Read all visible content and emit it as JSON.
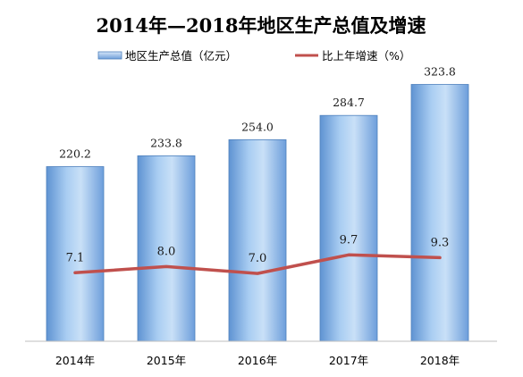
{
  "chart_data": {
    "type": "bar",
    "title": "2014年—2018年地区生产总值及增速",
    "categories": [
      "2014年",
      "2015年",
      "2016年",
      "2017年",
      "2018年"
    ],
    "series": [
      {
        "name": "地区生产总值（亿元）",
        "type": "bar",
        "values": [
          220.2,
          233.8,
          254.0,
          284.7,
          323.8
        ],
        "labels": [
          "220.2",
          "233.8",
          "254.0",
          "284.7",
          "323.8"
        ]
      },
      {
        "name": "比上年增速（%）",
        "type": "line",
        "values": [
          7.1,
          8.0,
          7.0,
          9.7,
          9.3
        ],
        "labels": [
          "7.1",
          "8.0",
          "7.0",
          "9.7",
          "9.3"
        ]
      }
    ],
    "legend_position": "top",
    "grid": false,
    "colors": {
      "bar_light": "#cfe3f8",
      "bar_mid": "#8fbbe9",
      "bar_dark": "#5a8fd0",
      "bar_stroke": "#4f81bd",
      "line": "#c0504d"
    }
  }
}
